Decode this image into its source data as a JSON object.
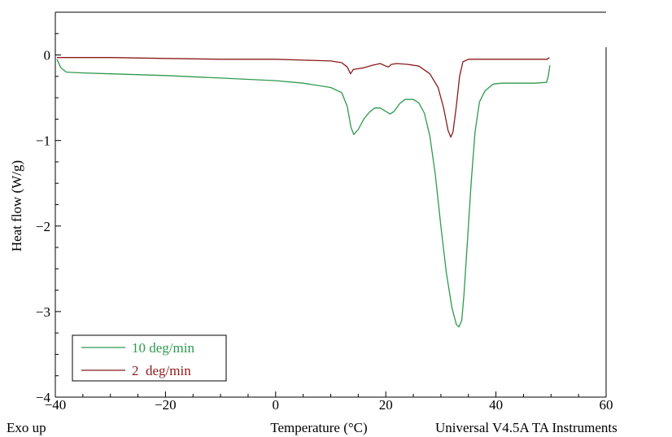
{
  "chart_data": {
    "type": "line",
    "title": "",
    "xlabel": "Temperature (°C)",
    "ylabel": "Heat flow (W/g)",
    "xlim": [
      -40,
      60
    ],
    "ylim": [
      -4,
      0.5
    ],
    "grid": false,
    "x_ticks": [
      -40,
      -20,
      0,
      20,
      40,
      60
    ],
    "x_tick_labels": [
      "−40",
      "−20",
      "0",
      "20",
      "40",
      "60"
    ],
    "y_ticks": [
      0,
      -1,
      -2,
      -3,
      -4
    ],
    "y_tick_labels": [
      "0",
      "−1",
      "−2",
      "−3",
      "−4"
    ],
    "legend_position": "bottom-left",
    "footer_left": "Exo up",
    "footer_right": "Universal V4.5A TA Instruments",
    "series": [
      {
        "name": "10 deg/min",
        "color": "#2e9a4e",
        "points": [
          [
            -39.7,
            -0.05
          ],
          [
            -39.0,
            -0.15
          ],
          [
            -38.0,
            -0.2
          ],
          [
            -35,
            -0.21
          ],
          [
            -30,
            -0.22
          ],
          [
            -20,
            -0.24
          ],
          [
            -10,
            -0.27
          ],
          [
            0,
            -0.3
          ],
          [
            5,
            -0.33
          ],
          [
            10,
            -0.38
          ],
          [
            12,
            -0.44
          ],
          [
            13,
            -0.6
          ],
          [
            13.7,
            -0.85
          ],
          [
            14.2,
            -0.93
          ],
          [
            15,
            -0.87
          ],
          [
            16,
            -0.75
          ],
          [
            17,
            -0.67
          ],
          [
            18,
            -0.62
          ],
          [
            19,
            -0.62
          ],
          [
            20,
            -0.66
          ],
          [
            20.8,
            -0.69
          ],
          [
            21.5,
            -0.66
          ],
          [
            22.5,
            -0.57
          ],
          [
            23.5,
            -0.52
          ],
          [
            25,
            -0.52
          ],
          [
            26,
            -0.56
          ],
          [
            27,
            -0.68
          ],
          [
            28,
            -0.95
          ],
          [
            29,
            -1.4
          ],
          [
            30,
            -2.0
          ],
          [
            31,
            -2.55
          ],
          [
            32,
            -2.95
          ],
          [
            32.8,
            -3.15
          ],
          [
            33.3,
            -3.18
          ],
          [
            33.8,
            -3.1
          ],
          [
            34.2,
            -2.8
          ],
          [
            34.8,
            -2.2
          ],
          [
            35.5,
            -1.5
          ],
          [
            36.2,
            -0.9
          ],
          [
            37,
            -0.55
          ],
          [
            38,
            -0.42
          ],
          [
            39.5,
            -0.34
          ],
          [
            41,
            -0.33
          ],
          [
            44,
            -0.33
          ],
          [
            47,
            -0.33
          ],
          [
            49.2,
            -0.32
          ],
          [
            49.5,
            -0.25
          ],
          [
            49.8,
            -0.12
          ]
        ]
      },
      {
        "name": "2  deg/min",
        "color": "#8b1a1a",
        "points": [
          [
            -39.7,
            -0.03
          ],
          [
            -30,
            -0.03
          ],
          [
            -20,
            -0.04
          ],
          [
            -10,
            -0.05
          ],
          [
            0,
            -0.05
          ],
          [
            5,
            -0.06
          ],
          [
            10,
            -0.07
          ],
          [
            12,
            -0.09
          ],
          [
            13,
            -0.14
          ],
          [
            13.6,
            -0.22
          ],
          [
            14.1,
            -0.17
          ],
          [
            15,
            -0.16
          ],
          [
            16,
            -0.15
          ],
          [
            17.5,
            -0.12
          ],
          [
            19,
            -0.1
          ],
          [
            20,
            -0.13
          ],
          [
            20.5,
            -0.14
          ],
          [
            21,
            -0.11
          ],
          [
            22,
            -0.1
          ],
          [
            24,
            -0.11
          ],
          [
            26,
            -0.13
          ],
          [
            28,
            -0.22
          ],
          [
            29.5,
            -0.38
          ],
          [
            30.5,
            -0.62
          ],
          [
            31.3,
            -0.88
          ],
          [
            31.8,
            -0.96
          ],
          [
            32.2,
            -0.9
          ],
          [
            32.8,
            -0.6
          ],
          [
            33.4,
            -0.25
          ],
          [
            34,
            -0.08
          ],
          [
            35,
            -0.05
          ],
          [
            40,
            -0.05
          ],
          [
            45,
            -0.05
          ],
          [
            49.3,
            -0.05
          ],
          [
            49.7,
            -0.03
          ]
        ]
      }
    ]
  }
}
